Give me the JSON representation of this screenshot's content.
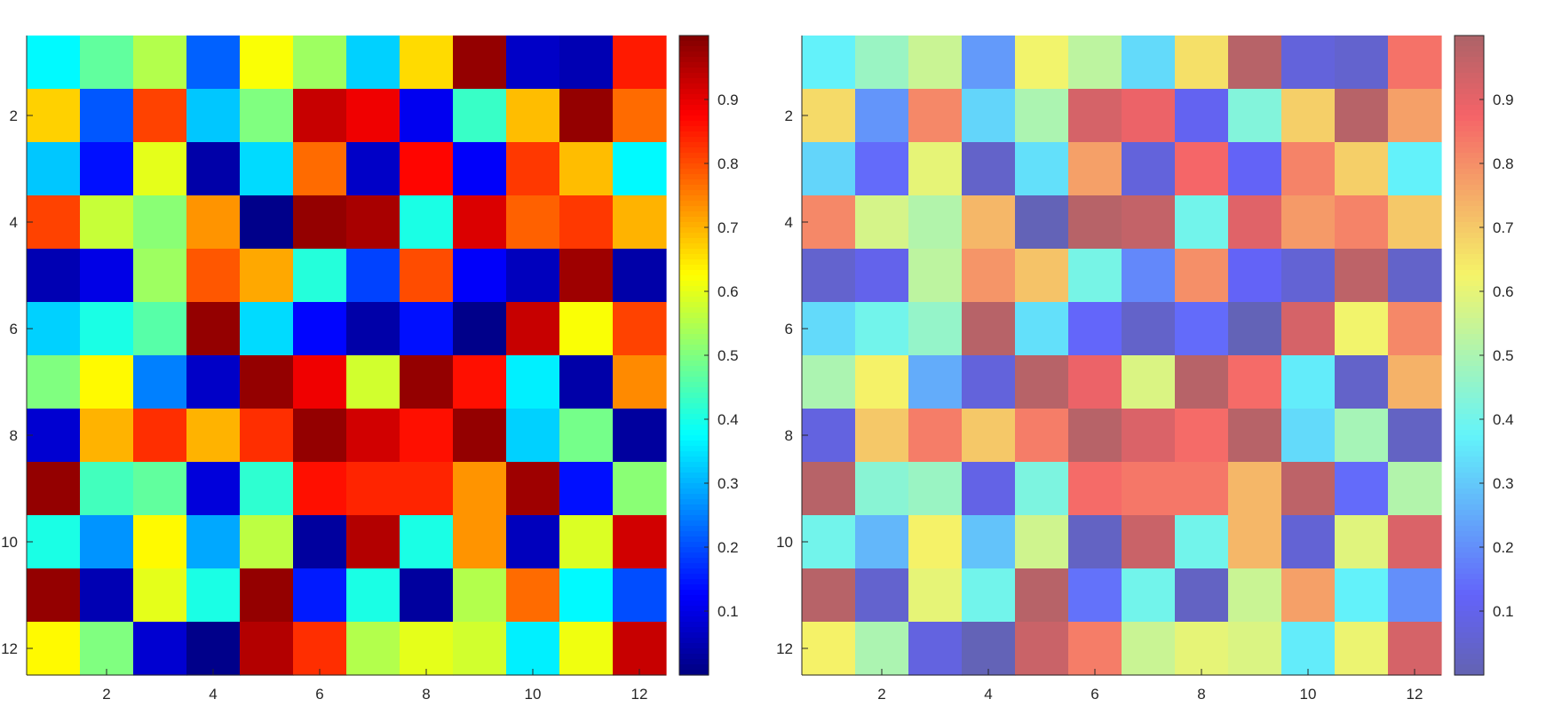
{
  "chart_data": [
    {
      "type": "heatmap",
      "colormap": "jet",
      "alpha": 1.0,
      "clim": [
        0,
        1
      ],
      "x_ticks": [
        2,
        4,
        6,
        8,
        10,
        12
      ],
      "y_ticks": [
        2,
        4,
        6,
        8,
        10,
        12
      ],
      "colorbar_ticks": [
        0.1,
        0.2,
        0.3,
        0.4,
        0.5,
        0.6,
        0.7,
        0.8,
        0.9
      ],
      "colorbar_tick_labels": [
        "0.1",
        "0.2",
        "0.3",
        "0.4",
        "0.5",
        "0.6",
        "0.7",
        "0.8",
        "0.9"
      ],
      "values": [
        [
          0.37,
          0.47,
          0.55,
          0.22,
          0.62,
          0.53,
          0.33,
          0.66,
          0.98,
          0.07,
          0.05,
          0.85
        ],
        [
          0.67,
          0.21,
          0.81,
          0.32,
          0.5,
          0.93,
          0.89,
          0.11,
          0.43,
          0.69,
          0.98,
          0.77
        ],
        [
          0.32,
          0.14,
          0.6,
          0.04,
          0.34,
          0.77,
          0.07,
          0.87,
          0.12,
          0.82,
          0.69,
          0.37
        ],
        [
          0.81,
          0.57,
          0.51,
          0.73,
          0.01,
          0.98,
          0.96,
          0.4,
          0.91,
          0.78,
          0.82,
          0.7
        ],
        [
          0.05,
          0.1,
          0.53,
          0.79,
          0.71,
          0.41,
          0.19,
          0.8,
          0.12,
          0.06,
          0.97,
          0.04
        ],
        [
          0.33,
          0.4,
          0.46,
          0.98,
          0.34,
          0.13,
          0.04,
          0.14,
          0.01,
          0.93,
          0.62,
          0.81
        ],
        [
          0.5,
          0.63,
          0.25,
          0.07,
          0.98,
          0.89,
          0.58,
          0.98,
          0.86,
          0.36,
          0.04,
          0.74
        ],
        [
          0.08,
          0.7,
          0.83,
          0.7,
          0.83,
          0.98,
          0.92,
          0.86,
          0.98,
          0.33,
          0.49,
          0.03
        ],
        [
          0.98,
          0.44,
          0.47,
          0.09,
          0.42,
          0.86,
          0.84,
          0.84,
          0.73,
          0.97,
          0.14,
          0.51
        ],
        [
          0.4,
          0.27,
          0.63,
          0.29,
          0.56,
          0.03,
          0.95,
          0.4,
          0.73,
          0.06,
          0.59,
          0.92
        ],
        [
          0.98,
          0.05,
          0.6,
          0.4,
          0.98,
          0.15,
          0.4,
          0.03,
          0.55,
          0.77,
          0.37,
          0.2
        ],
        [
          0.63,
          0.5,
          0.08,
          0.01,
          0.95,
          0.83,
          0.55,
          0.6,
          0.58,
          0.36,
          0.61,
          0.93
        ]
      ]
    },
    {
      "type": "heatmap",
      "colormap": "jet",
      "alpha": 0.65,
      "clim": [
        0,
        1
      ],
      "x_ticks": [
        2,
        4,
        6,
        8,
        10,
        12
      ],
      "y_ticks": [
        2,
        4,
        6,
        8,
        10,
        12
      ],
      "colorbar_ticks": [
        0.1,
        0.2,
        0.3,
        0.4,
        0.5,
        0.6,
        0.7,
        0.8,
        0.9
      ],
      "colorbar_tick_labels": [
        "0.1",
        "0.2",
        "0.3",
        "0.4",
        "0.5",
        "0.6",
        "0.7",
        "0.8",
        "0.9"
      ],
      "values": [
        [
          0.37,
          0.47,
          0.55,
          0.22,
          0.62,
          0.53,
          0.33,
          0.66,
          0.98,
          0.07,
          0.05,
          0.85
        ],
        [
          0.67,
          0.21,
          0.81,
          0.32,
          0.5,
          0.93,
          0.89,
          0.11,
          0.43,
          0.69,
          0.98,
          0.77
        ],
        [
          0.32,
          0.14,
          0.6,
          0.04,
          0.34,
          0.77,
          0.07,
          0.87,
          0.12,
          0.82,
          0.69,
          0.37
        ],
        [
          0.81,
          0.57,
          0.51,
          0.73,
          0.01,
          0.98,
          0.96,
          0.4,
          0.91,
          0.78,
          0.82,
          0.7
        ],
        [
          0.05,
          0.1,
          0.53,
          0.79,
          0.71,
          0.41,
          0.19,
          0.8,
          0.12,
          0.06,
          0.97,
          0.04
        ],
        [
          0.33,
          0.4,
          0.46,
          0.98,
          0.34,
          0.13,
          0.04,
          0.14,
          0.01,
          0.93,
          0.62,
          0.81
        ],
        [
          0.5,
          0.63,
          0.25,
          0.07,
          0.98,
          0.89,
          0.58,
          0.98,
          0.86,
          0.36,
          0.04,
          0.74
        ],
        [
          0.08,
          0.7,
          0.83,
          0.7,
          0.83,
          0.98,
          0.92,
          0.86,
          0.98,
          0.33,
          0.49,
          0.03
        ],
        [
          0.98,
          0.44,
          0.47,
          0.09,
          0.42,
          0.86,
          0.84,
          0.84,
          0.73,
          0.97,
          0.14,
          0.51
        ],
        [
          0.4,
          0.27,
          0.63,
          0.29,
          0.56,
          0.03,
          0.95,
          0.4,
          0.73,
          0.06,
          0.59,
          0.92
        ],
        [
          0.98,
          0.05,
          0.6,
          0.4,
          0.98,
          0.15,
          0.4,
          0.03,
          0.55,
          0.77,
          0.37,
          0.2
        ],
        [
          0.63,
          0.5,
          0.08,
          0.01,
          0.95,
          0.83,
          0.55,
          0.6,
          0.58,
          0.36,
          0.61,
          0.93
        ]
      ]
    }
  ]
}
